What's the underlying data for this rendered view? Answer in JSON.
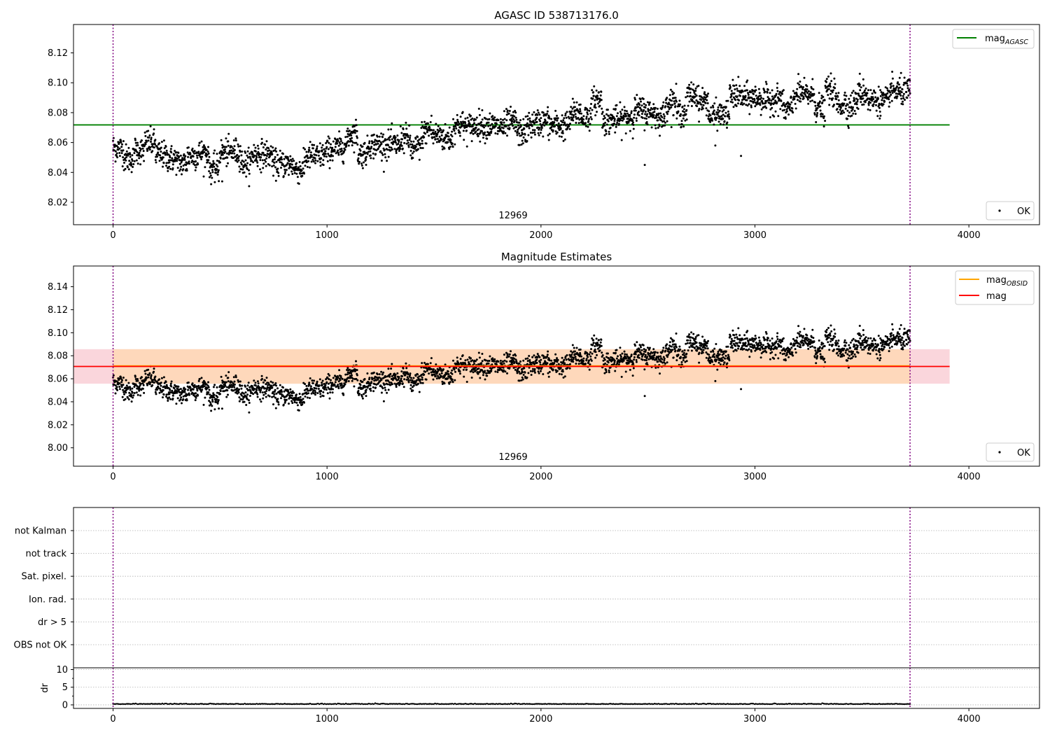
{
  "chart_data": [
    {
      "type": "scatter",
      "title": "AGASC ID 538713176.0",
      "xlim": [
        -185,
        4330
      ],
      "ylim": [
        8.005,
        8.139
      ],
      "xticks": [
        "0",
        "1000",
        "2000",
        "3000",
        "4000"
      ],
      "yticks": [
        "8.02",
        "8.04",
        "8.06",
        "8.08",
        "8.10",
        "8.12"
      ],
      "annotation": "12969",
      "vlines": [
        0,
        3725
      ],
      "series": [
        {
          "name": "OK",
          "kind": "points",
          "color": "#000000",
          "x_range": [
            0,
            3725
          ],
          "trend": [
            [
              0,
              8.058
            ],
            [
              300,
              8.052
            ],
            [
              600,
              8.05
            ],
            [
              900,
              8.046
            ],
            [
              1200,
              8.06
            ],
            [
              1400,
              8.055
            ],
            [
              1500,
              8.066
            ],
            [
              1700,
              8.068
            ],
            [
              1900,
              8.068
            ],
            [
              2100,
              8.073
            ],
            [
              2300,
              8.082
            ],
            [
              2500,
              8.082
            ],
            [
              2700,
              8.085
            ],
            [
              2900,
              8.089
            ],
            [
              3100,
              8.087
            ],
            [
              3300,
              8.09
            ],
            [
              3400,
              8.08
            ],
            [
              3500,
              8.092
            ],
            [
              3725,
              8.091
            ]
          ]
        },
        {
          "name": "mag_AGASC",
          "kind": "hline",
          "value": 8.0718,
          "x_range": [
            -185,
            3910
          ],
          "color": "#008000"
        }
      ],
      "legend": {
        "lines": [
          {
            "name": "mag",
            "sub": "AGASC",
            "color": "#008000"
          }
        ],
        "points_label": "OK"
      }
    },
    {
      "type": "scatter",
      "title": "Magnitude Estimates",
      "xlim": [
        -185,
        4330
      ],
      "ylim": [
        7.984,
        8.158
      ],
      "xticks": [
        "0",
        "1000",
        "2000",
        "3000",
        "4000"
      ],
      "yticks": [
        "8.00",
        "8.02",
        "8.04",
        "8.06",
        "8.08",
        "8.10",
        "8.12",
        "8.14"
      ],
      "annotation": "12969",
      "vlines": [
        0,
        3725
      ],
      "bands": [
        {
          "y": [
            8.0557,
            8.0857
          ],
          "x_range": [
            -185,
            3910
          ],
          "color": "#f8c8d0"
        },
        {
          "y": [
            8.0557,
            8.0857
          ],
          "x_range": [
            0,
            3725
          ],
          "color": "#ffd8b0"
        }
      ],
      "series": [
        {
          "name": "OK",
          "kind": "points",
          "color": "#000000",
          "x_range": [
            0,
            3725
          ]
        },
        {
          "name": "mag_OBSID",
          "kind": "hline",
          "value": 8.0712,
          "x_range": [
            0,
            3725
          ],
          "color": "#ffa500"
        },
        {
          "name": "mag",
          "kind": "hline",
          "value": 8.0707,
          "x_range": [
            -185,
            3910
          ],
          "color": "#ff0000"
        }
      ],
      "legend": {
        "lines": [
          {
            "name": "mag",
            "sub": "OBSID",
            "color": "#ffa500"
          },
          {
            "name": "mag",
            "sub": "",
            "color": "#ff0000"
          }
        ],
        "points_label": "OK"
      }
    },
    {
      "type": "scatter",
      "xlim": [
        -185,
        4330
      ],
      "flag_labels": [
        "not Kalman",
        "not track",
        "Sat. pixel.",
        "Ion. rad.",
        "dr > 5",
        "OBS not OK"
      ],
      "vlines": [
        0,
        3725
      ],
      "series": []
    },
    {
      "type": "scatter",
      "ylabel": "dr",
      "xlim": [
        -185,
        4330
      ],
      "ylim": [
        -1,
        10.5
      ],
      "xticks": [
        "0",
        "1000",
        "2000",
        "3000",
        "4000"
      ],
      "yticks": [
        "0",
        "5",
        "10"
      ],
      "vlines": [
        0,
        3725
      ],
      "series": [
        {
          "name": "dr",
          "kind": "points",
          "color": "#000000",
          "x_range": [
            0,
            3725
          ],
          "value": 0.2
        }
      ]
    }
  ]
}
